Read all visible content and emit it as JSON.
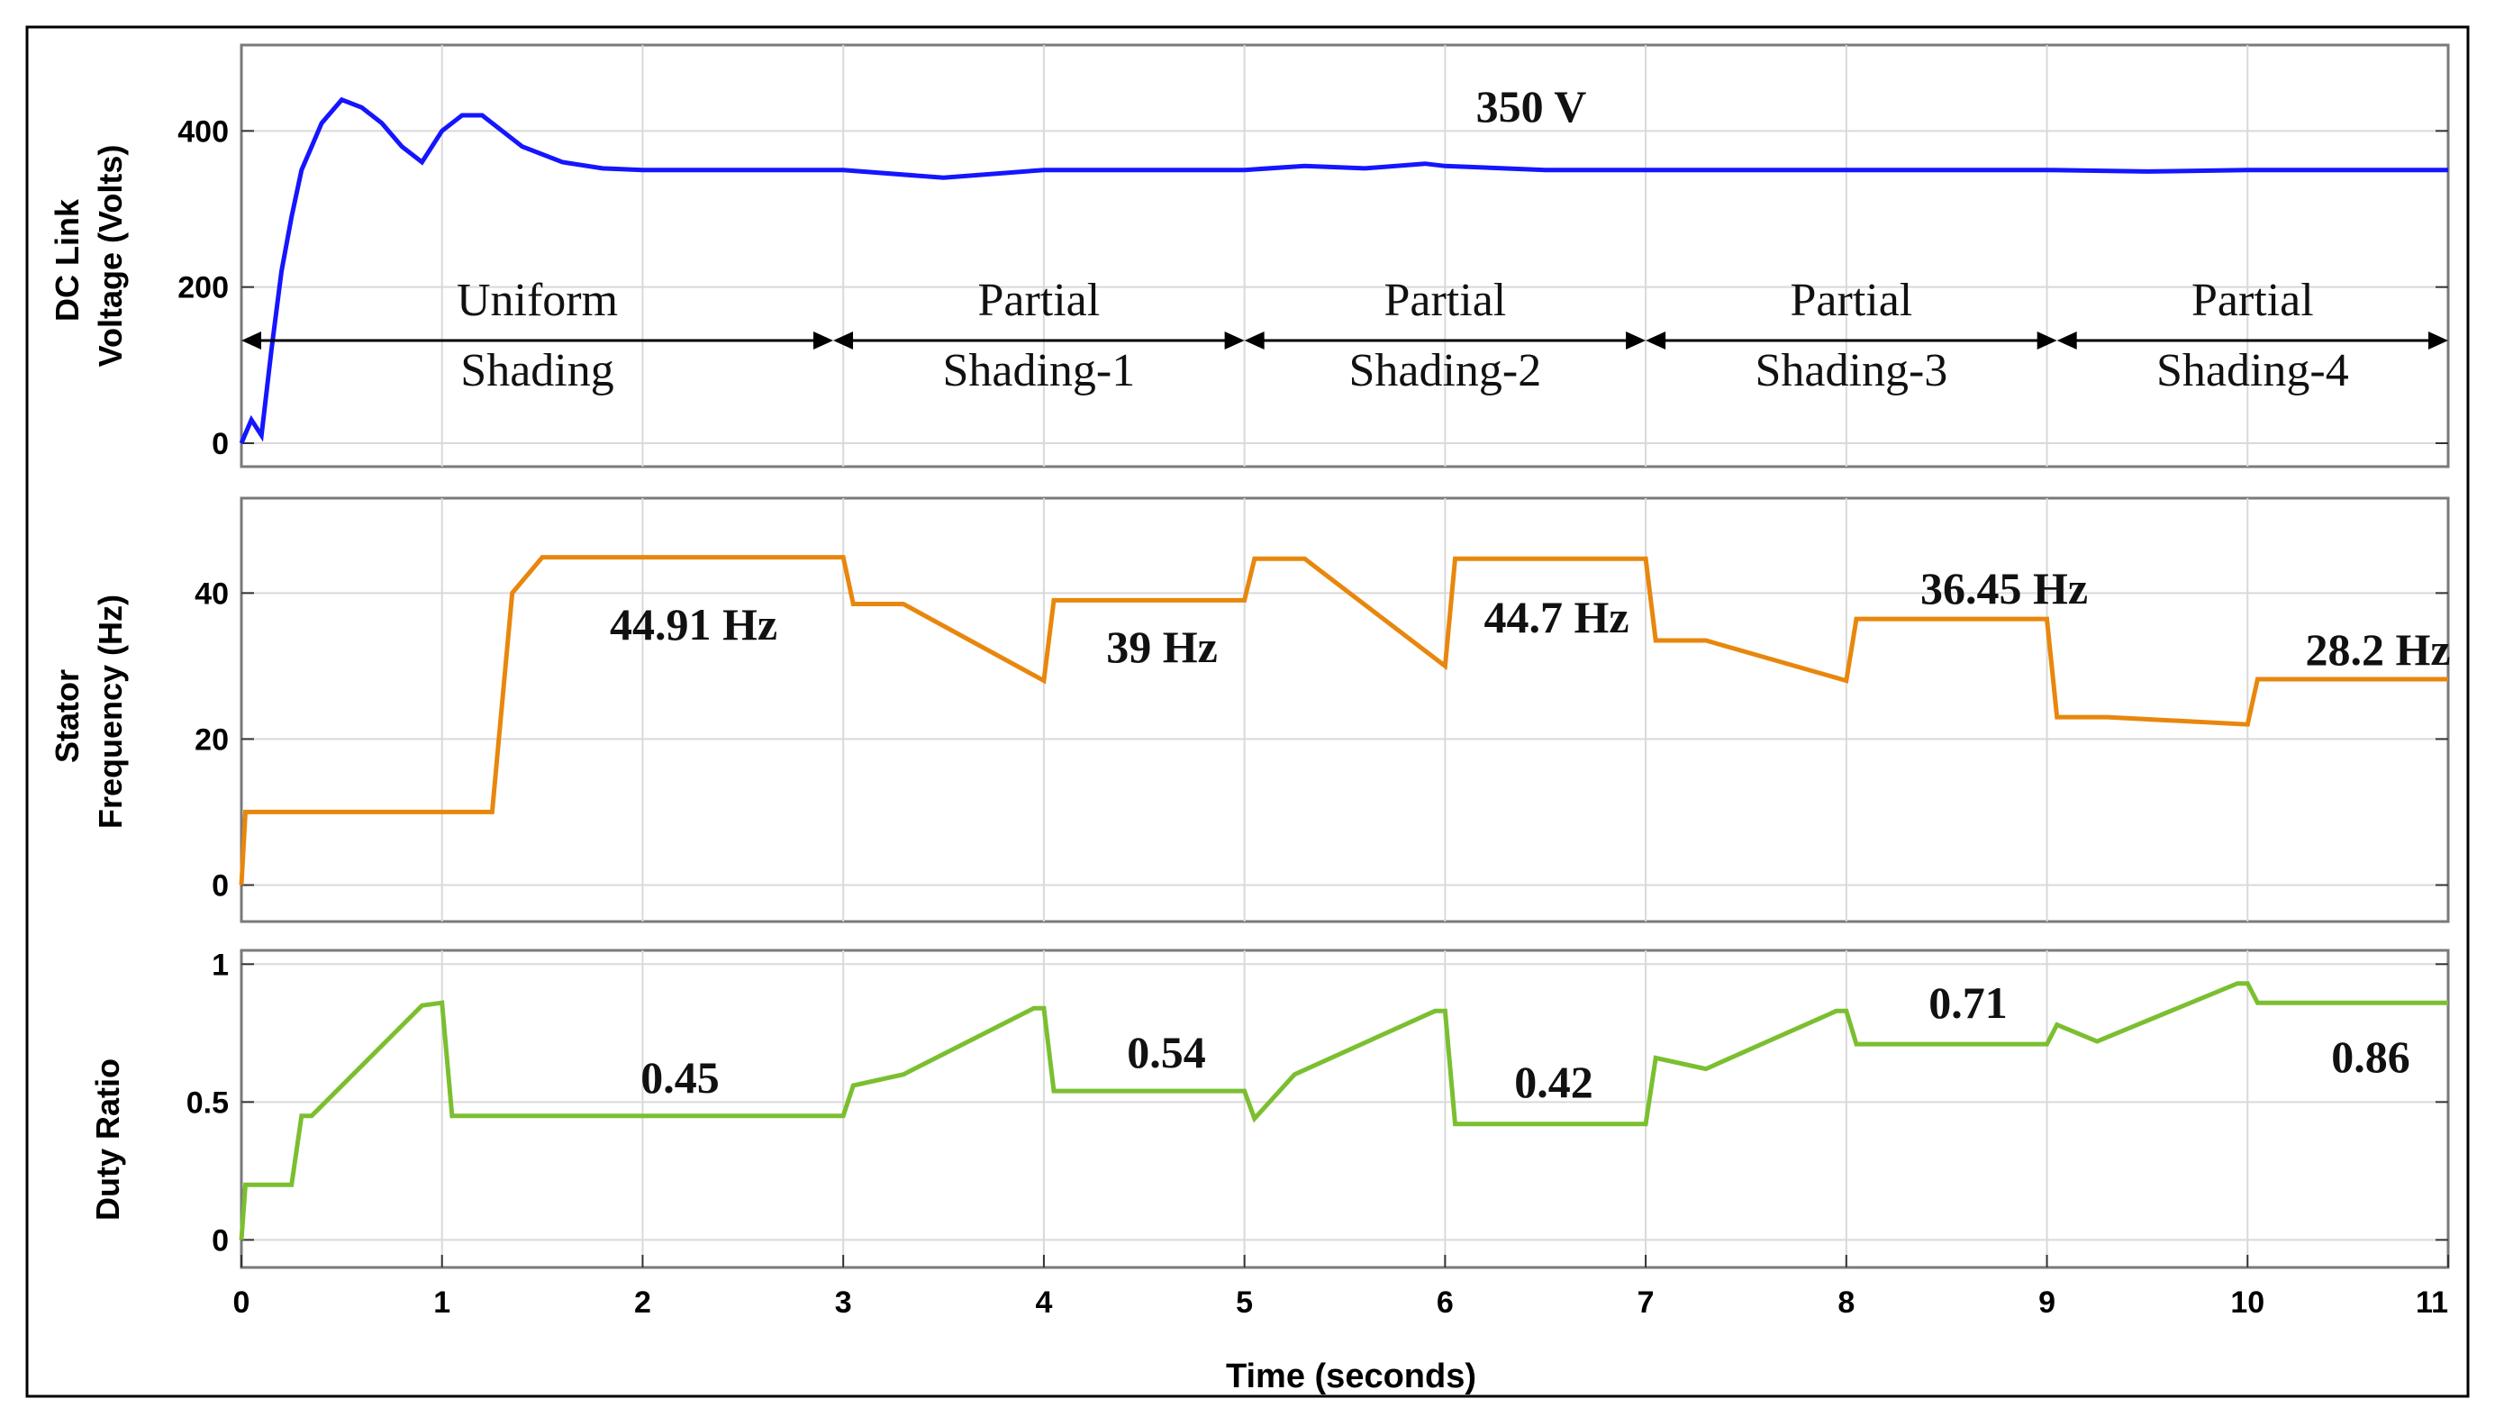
{
  "chart_data": [
    {
      "type": "line",
      "id": "dc-link",
      "ylabel_lines": [
        "DC Link",
        "Voltage (Volts)"
      ],
      "ylim": [
        -30,
        510
      ],
      "yticks": [
        0,
        200,
        400
      ],
      "xlim": [
        0,
        11
      ],
      "color": "#1515ff",
      "annotation": "350 V",
      "regions": [
        {
          "lines": [
            "Uniform",
            "Shading"
          ],
          "x0": 0,
          "x1": 2.95
        },
        {
          "lines": [
            "Partial",
            "Shading-1"
          ],
          "x0": 2.95,
          "x1": 5.0
        },
        {
          "lines": [
            "Partial",
            "Shading-2"
          ],
          "x0": 5.0,
          "x1": 7.0
        },
        {
          "lines": [
            "Partial",
            "Shading-3"
          ],
          "x0": 7.0,
          "x1": 9.05
        },
        {
          "lines": [
            "Partial",
            "Shading-4"
          ],
          "x0": 9.05,
          "x1": 11.0
        }
      ],
      "series": [
        {
          "name": "DC Link Voltage",
          "x": [
            0,
            0.05,
            0.1,
            0.15,
            0.2,
            0.25,
            0.3,
            0.35,
            0.4,
            0.5,
            0.6,
            0.7,
            0.8,
            0.9,
            1.0,
            1.1,
            1.2,
            1.3,
            1.4,
            1.6,
            1.8,
            2.0,
            3.0,
            3.5,
            4.0,
            5.0,
            5.3,
            5.6,
            5.9,
            6.0,
            6.5,
            7.0,
            7.5,
            8.0,
            9.0,
            9.5,
            10.0,
            11.0
          ],
          "y": [
            0,
            30,
            10,
            120,
            220,
            290,
            350,
            380,
            410,
            440,
            430,
            410,
            380,
            360,
            400,
            420,
            420,
            400,
            380,
            360,
            352,
            350,
            350,
            340,
            350,
            350,
            355,
            352,
            358,
            355,
            350,
            350,
            350,
            350,
            350,
            348,
            350,
            350
          ]
        }
      ]
    },
    {
      "type": "line",
      "id": "stator",
      "ylabel_lines": [
        "Stator",
        "Frequency (Hz)"
      ],
      "ylim": [
        -5,
        53
      ],
      "yticks": [
        0,
        20,
        40
      ],
      "xlim": [
        0,
        11
      ],
      "color": "#e8870d",
      "annotations": [
        "44.91 Hz",
        "39 Hz",
        "44.7 Hz",
        "36.45 Hz",
        "28.2 Hz"
      ],
      "series": [
        {
          "name": "Stator Frequency",
          "x": [
            0,
            0.02,
            1.25,
            1.35,
            1.5,
            3.0,
            3.05,
            3.3,
            4.0,
            4.05,
            5.0,
            5.05,
            5.3,
            6.0,
            6.05,
            7.0,
            7.05,
            7.3,
            8.0,
            8.05,
            9.0,
            9.05,
            9.3,
            10.0,
            10.05,
            11.0
          ],
          "y": [
            0,
            10,
            10,
            40,
            44.91,
            44.91,
            38.5,
            38.5,
            28,
            39,
            39,
            44.7,
            44.7,
            30,
            44.7,
            44.7,
            33.5,
            33.5,
            28,
            36.45,
            36.45,
            23,
            23,
            22,
            28.2,
            28.2
          ]
        }
      ]
    },
    {
      "type": "line",
      "id": "duty",
      "ylabel_lines": [
        "Duty Ratio"
      ],
      "ylim": [
        -0.1,
        1.05
      ],
      "yticks": [
        0,
        0.5,
        1
      ],
      "xlim": [
        0,
        11
      ],
      "color": "#7bbf30",
      "annotations": [
        "0.45",
        "0.54",
        "0.42",
        "0.71",
        "0.86"
      ],
      "xlabel": "Time (seconds)",
      "xticks": [
        0,
        1,
        2,
        3,
        4,
        5,
        6,
        7,
        8,
        9,
        10,
        11
      ],
      "series": [
        {
          "name": "Duty Ratio",
          "x": [
            0,
            0.02,
            0.25,
            0.3,
            0.35,
            0.9,
            1.0,
            1.05,
            3.0,
            3.05,
            3.3,
            3.95,
            4.0,
            4.05,
            5.0,
            5.05,
            5.25,
            5.95,
            6.0,
            6.05,
            7.0,
            7.05,
            7.3,
            7.95,
            8.0,
            8.05,
            9.0,
            9.05,
            9.25,
            9.95,
            10.0,
            10.05,
            11.0
          ],
          "y": [
            0,
            0.2,
            0.2,
            0.45,
            0.45,
            0.85,
            0.86,
            0.45,
            0.45,
            0.56,
            0.6,
            0.84,
            0.84,
            0.54,
            0.54,
            0.44,
            0.6,
            0.83,
            0.83,
            0.42,
            0.42,
            0.66,
            0.62,
            0.83,
            0.83,
            0.71,
            0.71,
            0.78,
            0.72,
            0.93,
            0.93,
            0.86,
            0.86
          ]
        }
      ]
    }
  ]
}
